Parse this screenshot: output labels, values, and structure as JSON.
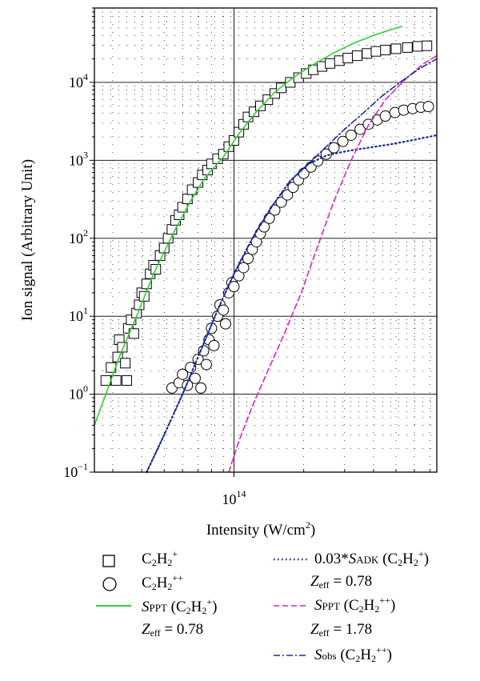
{
  "chart_data": {
    "type": "scatter",
    "xlabel": "Intensity (W/cm2)",
    "ylabel": "Ion signal (Arbitrary Unit)",
    "x_scale": "log",
    "y_scale": "log",
    "xlim": [
      25000000000000.0,
      750000000000000.0
    ],
    "ylim": [
      0.1,
      90000
    ],
    "x_tick_labels": [
      {
        "value": 100000000000000.0,
        "mantissa": "10",
        "exp": "14"
      }
    ],
    "y_tick_labels": [
      {
        "value": 0.1,
        "mantissa": "10",
        "exp": "−1"
      },
      {
        "value": 1,
        "mantissa": "10",
        "exp": "0"
      },
      {
        "value": 10,
        "mantissa": "10",
        "exp": "1"
      },
      {
        "value": 100,
        "mantissa": "10",
        "exp": "2"
      },
      {
        "value": 1000,
        "mantissa": "10",
        "exp": "3"
      },
      {
        "value": 10000,
        "mantissa": "10",
        "exp": "4"
      }
    ],
    "grid": true,
    "series": [
      {
        "name": "C2H2+",
        "kind": "points",
        "marker": "square",
        "points": [
          [
            28000000000000.0,
            1.5
          ],
          [
            29500000000000.0,
            2.2
          ],
          [
            31000000000000.0,
            1.5
          ],
          [
            31500000000000.0,
            3.0
          ],
          [
            32000000000000.0,
            5.0
          ],
          [
            33000000000000.0,
            4.0
          ],
          [
            34000000000000.0,
            2.5
          ],
          [
            34500000000000.0,
            1.5
          ],
          [
            35000000000000.0,
            7.0
          ],
          [
            36000000000000.0,
            9.0
          ],
          [
            37000000000000.0,
            6.0
          ],
          [
            38000000000000.0,
            11
          ],
          [
            39000000000000.0,
            14
          ],
          [
            40000000000000.0,
            20
          ],
          [
            41000000000000.0,
            18
          ],
          [
            42000000000000.0,
            26
          ],
          [
            43500000000000.0,
            35
          ],
          [
            45000000000000.0,
            45
          ],
          [
            46000000000000.0,
            40
          ],
          [
            48000000000000.0,
            60
          ],
          [
            50000000000000.0,
            75
          ],
          [
            52000000000000.0,
            100
          ],
          [
            54000000000000.0,
            130
          ],
          [
            56000000000000.0,
            170
          ],
          [
            58000000000000.0,
            200
          ],
          [
            60000000000000.0,
            250
          ],
          [
            63000000000000.0,
            320
          ],
          [
            66000000000000.0,
            420
          ],
          [
            70000000000000.0,
            520
          ],
          [
            73000000000000.0,
            650
          ],
          [
            77000000000000.0,
            750
          ],
          [
            80000000000000.0,
            900
          ],
          [
            85000000000000.0,
            1050
          ],
          [
            90000000000000.0,
            1200
          ],
          [
            95000000000000.0,
            1500
          ],
          [
            100000000000000.0,
            1800
          ],
          [
            105000000000000.0,
            2300
          ],
          [
            110000000000000.0,
            2900
          ],
          [
            115000000000000.0,
            3600
          ],
          [
            122000000000000.0,
            4200
          ],
          [
            130000000000000.0,
            5000
          ],
          [
            140000000000000.0,
            6000
          ],
          [
            150000000000000.0,
            7200
          ],
          [
            160000000000000.0,
            8500
          ],
          [
            175000000000000.0,
            10000
          ],
          [
            190000000000000.0,
            11500
          ],
          [
            205000000000000.0,
            13000
          ],
          [
            220000000000000.0,
            14500
          ],
          [
            240000000000000.0,
            16000
          ],
          [
            260000000000000.0,
            17500
          ],
          [
            285000000000000.0,
            19000
          ],
          [
            310000000000000.0,
            20500
          ],
          [
            340000000000000.0,
            22000
          ],
          [
            375000000000000.0,
            23500
          ],
          [
            410000000000000.0,
            25000
          ],
          [
            450000000000000.0,
            26000
          ],
          [
            500000000000000.0,
            27000
          ],
          [
            560000000000000.0,
            28000
          ],
          [
            620000000000000.0,
            29000
          ],
          [
            680000000000000.0,
            29500
          ]
        ]
      },
      {
        "name": "C2H2++",
        "kind": "points",
        "marker": "circle",
        "points": [
          [
            54000000000000.0,
            1.2
          ],
          [
            58000000000000.0,
            1.4
          ],
          [
            60000000000000.0,
            1.8
          ],
          [
            63000000000000.0,
            1.3
          ],
          [
            65000000000000.0,
            2.2
          ],
          [
            68000000000000.0,
            1.6
          ],
          [
            70000000000000.0,
            2.8
          ],
          [
            72000000000000.0,
            1.2
          ],
          [
            74000000000000.0,
            3.6
          ],
          [
            76000000000000.0,
            2.4
          ],
          [
            78000000000000.0,
            5.0
          ],
          [
            80000000000000.0,
            7.0
          ],
          [
            82000000000000.0,
            4.2
          ],
          [
            85000000000000.0,
            10
          ],
          [
            87000000000000.0,
            14
          ],
          [
            90000000000000.0,
            12
          ],
          [
            92000000000000.0,
            8.0
          ],
          [
            95000000000000.0,
            20
          ],
          [
            98000000000000.0,
            27
          ],
          [
            100000000000000.0,
            24
          ],
          [
            105000000000000.0,
            33
          ],
          [
            110000000000000.0,
            42
          ],
          [
            115000000000000.0,
            55
          ],
          [
            120000000000000.0,
            72
          ],
          [
            125000000000000.0,
            90
          ],
          [
            130000000000000.0,
            115
          ],
          [
            135000000000000.0,
            140
          ],
          [
            142000000000000.0,
            180
          ],
          [
            150000000000000.0,
            230
          ],
          [
            160000000000000.0,
            290
          ],
          [
            170000000000000.0,
            360
          ],
          [
            180000000000000.0,
            450
          ],
          [
            190000000000000.0,
            560
          ],
          [
            200000000000000.0,
            680
          ],
          [
            215000000000000.0,
            820
          ],
          [
            230000000000000.0,
            980
          ],
          [
            250000000000000.0,
            1200
          ],
          [
            270000000000000.0,
            1450
          ],
          [
            295000000000000.0,
            1750
          ],
          [
            320000000000000.0,
            2100
          ],
          [
            350000000000000.0,
            2500
          ],
          [
            380000000000000.0,
            2900
          ],
          [
            415000000000000.0,
            3300
          ],
          [
            450000000000000.0,
            3700
          ],
          [
            495000000000000.0,
            4100
          ],
          [
            540000000000000.0,
            4400
          ],
          [
            590000000000000.0,
            4600
          ],
          [
            640000000000000.0,
            4800
          ],
          [
            690000000000000.0,
            4900
          ]
        ]
      },
      {
        "name": "SPPT (C2H2+)",
        "kind": "line",
        "style": "solid",
        "color": "#33cc33",
        "points": [
          [
            25000000000000.0,
            0.4
          ],
          [
            28000000000000.0,
            1.0
          ],
          [
            32000000000000.0,
            3.0
          ],
          [
            38000000000000.0,
            10
          ],
          [
            45000000000000.0,
            35
          ],
          [
            55000000000000.0,
            120
          ],
          [
            65000000000000.0,
            300
          ],
          [
            75000000000000.0,
            600
          ],
          [
            90000000000000.0,
            1100
          ],
          [
            105000000000000.0,
            2200
          ],
          [
            125000000000000.0,
            4200
          ],
          [
            150000000000000.0,
            7500
          ],
          [
            180000000000000.0,
            11500
          ],
          [
            220000000000000.0,
            17000
          ],
          [
            270000000000000.0,
            24000
          ],
          [
            330000000000000.0,
            32000
          ],
          [
            400000000000000.0,
            40000
          ],
          [
            480000000000000.0,
            48000
          ],
          [
            530000000000000.0,
            52000
          ]
        ]
      },
      {
        "name": "0.03*SADK (C2H2+)",
        "kind": "line",
        "style": "dotted",
        "color": "#1a2a99",
        "points": [
          [
            42000000000000.0,
            0.1
          ],
          [
            50000000000000.0,
            0.3
          ],
          [
            60000000000000.0,
            1.0
          ],
          [
            70000000000000.0,
            3.0
          ],
          [
            85000000000000.0,
            12
          ],
          [
            100000000000000.0,
            35
          ],
          [
            120000000000000.0,
            100
          ],
          [
            145000000000000.0,
            250
          ],
          [
            175000000000000.0,
            550
          ],
          [
            210000000000000.0,
            900
          ],
          [
            250000000000000.0,
            1150
          ],
          [
            300000000000000.0,
            1300
          ],
          [
            380000000000000.0,
            1450
          ],
          [
            470000000000000.0,
            1600
          ],
          [
            580000000000000.0,
            1800
          ],
          [
            750000000000000.0,
            2100
          ]
        ]
      },
      {
        "name": "SPPT (C2H2++)",
        "kind": "line",
        "style": "dashed",
        "color": "#e020c0",
        "points": [
          [
            95000000000000.0,
            0.1
          ],
          [
            105000000000000.0,
            0.25
          ],
          [
            120000000000000.0,
            0.7
          ],
          [
            140000000000000.0,
            2.0
          ],
          [
            165000000000000.0,
            6.0
          ],
          [
            195000000000000.0,
            20
          ],
          [
            230000000000000.0,
            80
          ],
          [
            270000000000000.0,
            300
          ],
          [
            320000000000000.0,
            1000
          ],
          [
            380000000000000.0,
            2800
          ],
          [
            450000000000000.0,
            6000
          ],
          [
            550000000000000.0,
            11000
          ],
          [
            650000000000000.0,
            17000
          ],
          [
            750000000000000.0,
            22000
          ]
        ]
      },
      {
        "name": "Sobs (C2H2++)",
        "kind": "line",
        "style": "dashdot",
        "color": "#1a2aaa",
        "points": [
          [
            42000000000000.0,
            0.1
          ],
          [
            50000000000000.0,
            0.3
          ],
          [
            60000000000000.0,
            1.0
          ],
          [
            70000000000000.0,
            3.0
          ],
          [
            85000000000000.0,
            12
          ],
          [
            100000000000000.0,
            35
          ],
          [
            120000000000000.0,
            100
          ],
          [
            145000000000000.0,
            250
          ],
          [
            175000000000000.0,
            550
          ],
          [
            210000000000000.0,
            900
          ],
          [
            250000000000000.0,
            1500
          ],
          [
            300000000000000.0,
            2500
          ],
          [
            360000000000000.0,
            4000
          ],
          [
            430000000000000.0,
            6500
          ],
          [
            520000000000000.0,
            10000
          ],
          [
            630000000000000.0,
            15000
          ],
          [
            750000000000000.0,
            20000
          ]
        ]
      }
    ]
  },
  "legend": {
    "sq_label": {
      "main": "C",
      "s1": "2",
      "m2": "H",
      "s2": "2",
      "sup": "+"
    },
    "circ_label": {
      "main": "C",
      "s1": "2",
      "m2": "H",
      "s2": "2",
      "sup": "++"
    },
    "sppt1": {
      "s": "S",
      "sub": "PPT",
      "rest_a": " (C",
      "s1": "2",
      "m2": "H",
      "s2": "2",
      "sup": "+",
      "close": ")"
    },
    "sppt1_zeff": {
      "z": "Z",
      "sub": "eff",
      "val": " = 0.78"
    },
    "adk": {
      "pre": "0.03*",
      "s": "S",
      "sub": "ADK",
      "rest_a": " (C",
      "s1": "2",
      "m2": "H",
      "s2": "2",
      "sup": "+",
      "close": ")"
    },
    "adk_zeff": {
      "z": "Z",
      "sub": "eff",
      "val": " = 0.78"
    },
    "sppt2": {
      "s": "S",
      "sub": "PPT",
      "rest_a": " (C",
      "s1": "2",
      "m2": "H",
      "s2": "2",
      "sup": "++",
      "close": ")"
    },
    "sppt2_zeff": {
      "z": "Z",
      "sub": "eff",
      "val": " = 1.78"
    },
    "sobs": {
      "s": "S",
      "sub": "obs",
      "rest_a": " (C",
      "s1": "2",
      "m2": "H",
      "s2": "2",
      "sup": "++",
      "close": ")"
    }
  }
}
